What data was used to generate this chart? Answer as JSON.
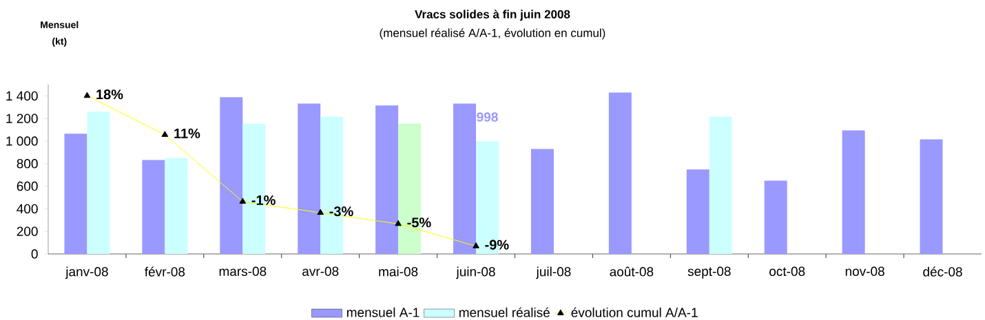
{
  "chart_data": {
    "type": "bar",
    "title": "Vracs solides à fin juin 2008",
    "subtitle": "(mensuel réalisé A/A-1, évolution en cumul)",
    "ylabel": "Mensuel (kt)",
    "categories": [
      "janv-08",
      "févr-08",
      "mars-08",
      "avr-08",
      "mai-08",
      "juin-08",
      "juil-08",
      "août-08",
      "sept-08",
      "oct-08",
      "nov-08",
      "déc-08"
    ],
    "series": [
      {
        "name": "mensuel A-1",
        "color": "#9999ff",
        "values": [
          1065,
          833,
          1388,
          1333,
          1315,
          1333,
          930,
          1430,
          748,
          650,
          1095,
          1016
        ]
      },
      {
        "name": "mensuel réalisé",
        "color": "#ccffff",
        "colors": [
          "#ccffff",
          "#ccffff",
          "#ccffff",
          "#ccffff",
          "#ccffcc",
          "#ccffff",
          "#ccffff",
          "#ccffff",
          "#ccffff",
          "#ccffff",
          "#ccffff",
          "#ccffff"
        ],
        "values": [
          1260,
          850,
          1154,
          1217,
          1156,
          998,
          null,
          null,
          1217,
          null,
          null,
          null
        ],
        "value_labels": [
          null,
          null,
          null,
          null,
          null,
          "998",
          null,
          null,
          null,
          null,
          null,
          null
        ]
      },
      {
        "name": "évolution cumul A/A-1",
        "type": "line",
        "axis": "y2",
        "color": "#ffff00",
        "values": [
          18,
          11,
          -1,
          -3,
          -5,
          -9,
          null,
          null,
          null,
          null,
          null,
          null
        ],
        "value_labels": [
          "18%",
          "11%",
          "-1%",
          "-3%",
          "-5%",
          "-9%",
          null,
          null,
          null,
          null,
          null,
          null
        ]
      }
    ],
    "ylim": [
      0,
      1500
    ],
    "yticks": [
      0,
      200,
      400,
      600,
      800,
      {
        "value": 1000,
        "label": "1 000"
      },
      {
        "value": 1200,
        "label": "1 200"
      },
      {
        "value": 1400,
        "label": "1 400"
      }
    ],
    "y2lim": [
      -10.4,
      20
    ],
    "marker": "triangle",
    "legend": "bottom",
    "grid": false
  }
}
